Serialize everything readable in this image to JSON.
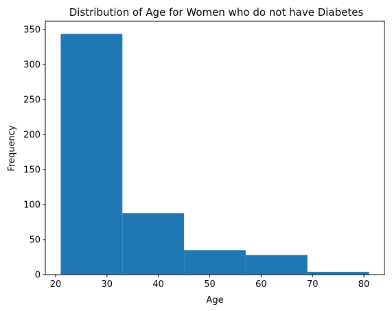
{
  "chart_data": {
    "type": "bar",
    "subtype": "histogram",
    "title": "Distribution of Age for Women who do not have Diabetes",
    "xlabel": "Age",
    "ylabel": "Frequency",
    "bins": [
      {
        "x0": 21,
        "x1": 33,
        "value": 344
      },
      {
        "x0": 33,
        "x1": 45,
        "value": 88
      },
      {
        "x0": 45,
        "x1": 57,
        "value": 35
      },
      {
        "x0": 57,
        "x1": 69,
        "value": 28
      },
      {
        "x0": 69,
        "x1": 81,
        "value": 4
      }
    ],
    "xlim": [
      18,
      84
    ],
    "ylim": [
      0,
      362
    ],
    "xticks": [
      20,
      30,
      40,
      50,
      60,
      70,
      80
    ],
    "yticks": [
      0,
      50,
      100,
      150,
      200,
      250,
      300,
      350
    ],
    "bar_color": "#1f77b4",
    "grid": false,
    "legend": "none"
  }
}
